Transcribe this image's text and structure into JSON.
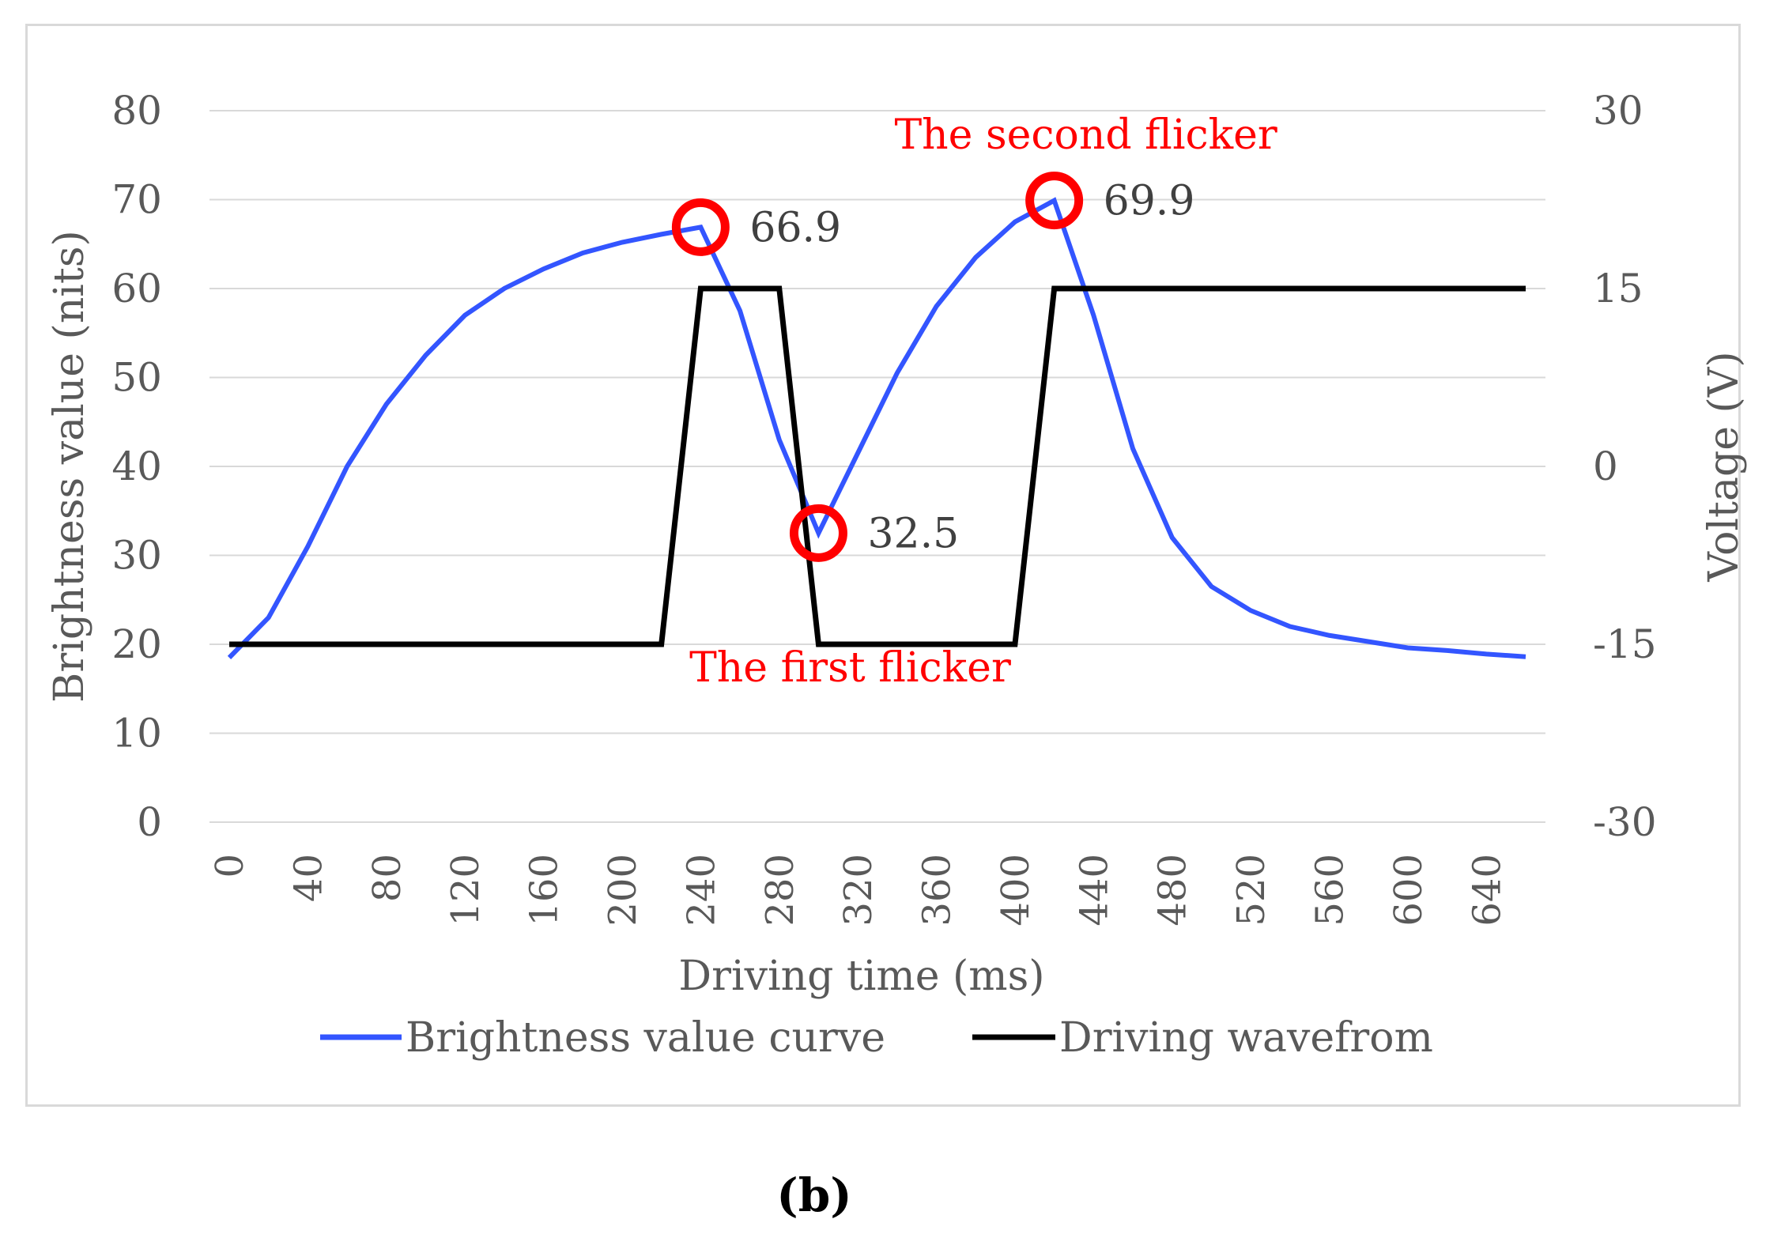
{
  "panel_label": "(b)",
  "chart_data": {
    "type": "line",
    "xlabel": "Driving time (ms)",
    "ylabel": "Brightness value (nits)",
    "y2label": "Voltage (V)",
    "xlim": [
      0,
      660
    ],
    "ylim": [
      0,
      80
    ],
    "y2lim": [
      -30,
      30
    ],
    "x_ticks": [
      0,
      40,
      80,
      120,
      160,
      200,
      240,
      280,
      320,
      360,
      400,
      440,
      480,
      520,
      560,
      600,
      640
    ],
    "y_ticks": [
      0,
      10,
      20,
      30,
      40,
      50,
      60,
      70,
      80
    ],
    "y2_ticks": [
      -30,
      -15,
      0,
      15,
      30
    ],
    "grid": "horizontal",
    "legend_position": "bottom",
    "series": [
      {
        "name": "Brightness value curve",
        "axis": "left",
        "color": "#3355ff",
        "x": [
          0,
          20,
          40,
          60,
          80,
          100,
          120,
          140,
          160,
          180,
          200,
          220,
          240,
          260,
          280,
          300,
          320,
          340,
          360,
          380,
          400,
          420,
          440,
          460,
          480,
          500,
          520,
          540,
          560,
          580,
          600,
          620,
          640,
          660
        ],
        "y": [
          18.5,
          23,
          31,
          40,
          47,
          52.5,
          57,
          60,
          62.2,
          64,
          65.2,
          66.1,
          66.9,
          57.5,
          43,
          32.5,
          41.5,
          50.5,
          58,
          63.5,
          67.5,
          69.9,
          57,
          42,
          32,
          26.5,
          23.8,
          22,
          21,
          20.3,
          19.6,
          19.3,
          18.9,
          18.6
        ]
      },
      {
        "name": "Driving wavefrom",
        "axis": "right",
        "color": "#000000",
        "x": [
          0,
          220,
          240,
          280,
          300,
          400,
          420,
          660
        ],
        "y": [
          -15,
          -15,
          15,
          15,
          -15,
          -15,
          15,
          15
        ]
      }
    ],
    "annotations": [
      {
        "text": "66.9",
        "x": 240,
        "y": 66.9
      },
      {
        "text": "32.5",
        "x": 300,
        "y": 32.5
      },
      {
        "text": "69.9",
        "x": 420,
        "y": 69.9
      },
      {
        "text": "The first flicker",
        "x": 300,
        "y": 20,
        "color": "#ff0000"
      },
      {
        "text": "The  second flicker",
        "x": 420,
        "y": 78,
        "color": "#ff0000"
      }
    ]
  }
}
